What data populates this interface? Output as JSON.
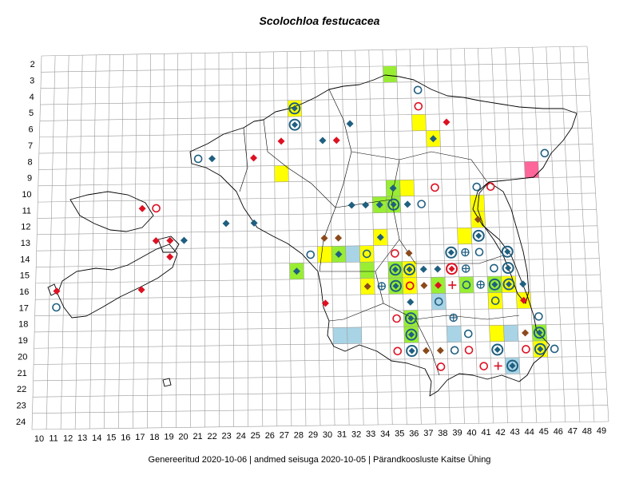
{
  "title": "Scolochloa festucacea",
  "footer": "Genereeritud 2020-10-06  |  andmed seisuga 2020-10-05  |  Pärandkoosluste Kaitse Ühing",
  "grid": {
    "row_labels": [
      "2",
      "3",
      "4",
      "5",
      "6",
      "7",
      "8",
      "9",
      "10",
      "11",
      "12",
      "13",
      "14",
      "15",
      "16",
      "17",
      "18",
      "19",
      "20",
      "21",
      "22",
      "23",
      "24"
    ],
    "col_labels": [
      "10",
      "11",
      "12",
      "13",
      "14",
      "15",
      "16",
      "17",
      "18",
      "19",
      "20",
      "21",
      "22",
      "23",
      "24",
      "25",
      "26",
      "27",
      "28",
      "29",
      "30",
      "31",
      "32",
      "33",
      "34",
      "35",
      "36",
      "37",
      "38",
      "39",
      "40",
      "41",
      "42",
      "43",
      "44",
      "45",
      "46",
      "47",
      "48",
      "49"
    ]
  },
  "colors": {
    "yellow": "#ffff00",
    "green": "#99ee33",
    "blue": "#a8d4e6",
    "pink": "#ff6699",
    "blue_symbol": "#1f5f80",
    "red_symbol": "#dd1122",
    "brown_symbol": "#8b4a1c"
  },
  "cells": [
    {
      "col": 35,
      "row": 3,
      "fill": "green"
    },
    {
      "col": 28,
      "row": 5,
      "fill": "yellow"
    },
    {
      "col": 37,
      "row": 6,
      "fill": "yellow"
    },
    {
      "col": 38,
      "row": 7,
      "fill": "yellow"
    },
    {
      "col": 27,
      "row": 9,
      "fill": "yellow"
    },
    {
      "col": 45,
      "row": 9,
      "fill": "pink"
    },
    {
      "col": 35,
      "row": 10,
      "fill": "green"
    },
    {
      "col": 36,
      "row": 10,
      "fill": "yellow"
    },
    {
      "col": 34,
      "row": 11,
      "fill": "green"
    },
    {
      "col": 35,
      "row": 11,
      "fill": "green"
    },
    {
      "col": 41,
      "row": 11,
      "fill": "yellow"
    },
    {
      "col": 41,
      "row": 12,
      "fill": "yellow"
    },
    {
      "col": 34,
      "row": 13,
      "fill": "yellow"
    },
    {
      "col": 40,
      "row": 13,
      "fill": "yellow"
    },
    {
      "col": 30,
      "row": 14,
      "fill": "yellow"
    },
    {
      "col": 31,
      "row": 14,
      "fill": "green"
    },
    {
      "col": 32,
      "row": 14,
      "fill": "blue"
    },
    {
      "col": 33,
      "row": 14,
      "fill": "yellow"
    },
    {
      "col": 28,
      "row": 15,
      "fill": "green"
    },
    {
      "col": 33,
      "row": 15,
      "fill": "green"
    },
    {
      "col": 35,
      "row": 15,
      "fill": "green"
    },
    {
      "col": 36,
      "row": 15,
      "fill": "yellow"
    },
    {
      "col": 33,
      "row": 16,
      "fill": "yellow"
    },
    {
      "col": 35,
      "row": 16,
      "fill": "green"
    },
    {
      "col": 36,
      "row": 16,
      "fill": "yellow"
    },
    {
      "col": 38,
      "row": 16,
      "fill": "green"
    },
    {
      "col": 40,
      "row": 16,
      "fill": "green"
    },
    {
      "col": 42,
      "row": 16,
      "fill": "green"
    },
    {
      "col": 43,
      "row": 16,
      "fill": "yellow"
    },
    {
      "col": 38,
      "row": 17,
      "fill": "blue"
    },
    {
      "col": 42,
      "row": 17,
      "fill": "yellow"
    },
    {
      "col": 44,
      "row": 17,
      "fill": "yellow"
    },
    {
      "col": 36,
      "row": 18,
      "fill": "green"
    },
    {
      "col": 31,
      "row": 19,
      "fill": "blue"
    },
    {
      "col": 32,
      "row": 19,
      "fill": "blue"
    },
    {
      "col": 36,
      "row": 19,
      "fill": "green"
    },
    {
      "col": 39,
      "row": 19,
      "fill": "blue"
    },
    {
      "col": 42,
      "row": 19,
      "fill": "yellow"
    },
    {
      "col": 43,
      "row": 19,
      "fill": "blue"
    },
    {
      "col": 45,
      "row": 19,
      "fill": "green"
    },
    {
      "col": 45,
      "row": 20,
      "fill": "yellow"
    },
    {
      "col": 43,
      "row": 21,
      "fill": "blue"
    }
  ],
  "symbols": [
    {
      "col": 28,
      "row": 5,
      "kind": "diamond-in-circle",
      "color": "blue"
    },
    {
      "col": 37,
      "row": 4,
      "kind": "circle",
      "color": "blue"
    },
    {
      "col": 37,
      "row": 5,
      "kind": "circle",
      "color": "red"
    },
    {
      "col": 39,
      "row": 6,
      "kind": "diamond",
      "color": "red"
    },
    {
      "col": 28,
      "row": 6,
      "kind": "diamond-in-circle",
      "color": "blue"
    },
    {
      "col": 32,
      "row": 6,
      "kind": "diamond",
      "color": "blue"
    },
    {
      "col": 27,
      "row": 7,
      "kind": "diamond",
      "color": "red"
    },
    {
      "col": 30,
      "row": 7,
      "kind": "diamond",
      "color": "blue"
    },
    {
      "col": 31,
      "row": 7,
      "kind": "diamond",
      "color": "red"
    },
    {
      "col": 38,
      "row": 7,
      "kind": "diamond",
      "color": "blue"
    },
    {
      "col": 21,
      "row": 8,
      "kind": "circle",
      "color": "blue"
    },
    {
      "col": 22,
      "row": 8,
      "kind": "diamond",
      "color": "blue"
    },
    {
      "col": 25,
      "row": 8,
      "kind": "diamond",
      "color": "red"
    },
    {
      "col": 46,
      "row": 8,
      "kind": "circle",
      "color": "blue"
    },
    {
      "col": 35,
      "row": 10,
      "kind": "diamond",
      "color": "blue"
    },
    {
      "col": 38,
      "row": 10,
      "kind": "circle",
      "color": "red"
    },
    {
      "col": 41,
      "row": 10,
      "kind": "circle",
      "color": "blue"
    },
    {
      "col": 42,
      "row": 10,
      "kind": "circle",
      "color": "red"
    },
    {
      "col": 17,
      "row": 11,
      "kind": "diamond",
      "color": "red"
    },
    {
      "col": 18,
      "row": 11,
      "kind": "circle",
      "color": "red"
    },
    {
      "col": 32,
      "row": 11,
      "kind": "diamond",
      "color": "blue"
    },
    {
      "col": 33,
      "row": 11,
      "kind": "diamond",
      "color": "blue"
    },
    {
      "col": 34,
      "row": 11,
      "kind": "diamond",
      "color": "blue"
    },
    {
      "col": 35,
      "row": 11,
      "kind": "diamond-in-circle",
      "color": "blue"
    },
    {
      "col": 36,
      "row": 11,
      "kind": "diamond",
      "color": "blue"
    },
    {
      "col": 37,
      "row": 11,
      "kind": "circle",
      "color": "blue"
    },
    {
      "col": 41,
      "row": 12,
      "kind": "diamond",
      "color": "brown"
    },
    {
      "col": 23,
      "row": 12,
      "kind": "diamond",
      "color": "blue"
    },
    {
      "col": 25,
      "row": 12,
      "kind": "diamond",
      "color": "blue"
    },
    {
      "col": 18,
      "row": 13,
      "kind": "diamond",
      "color": "red"
    },
    {
      "col": 19,
      "row": 13,
      "kind": "diamond",
      "color": "red"
    },
    {
      "col": 20,
      "row": 13,
      "kind": "diamond",
      "color": "blue"
    },
    {
      "col": 30,
      "row": 13,
      "kind": "diamond",
      "color": "brown"
    },
    {
      "col": 31,
      "row": 13,
      "kind": "diamond",
      "color": "brown"
    },
    {
      "col": 34,
      "row": 13,
      "kind": "diamond",
      "color": "blue"
    },
    {
      "col": 41,
      "row": 13,
      "kind": "diamond-in-circle",
      "color": "blue"
    },
    {
      "col": 19,
      "row": 14,
      "kind": "diamond",
      "color": "red"
    },
    {
      "col": 29,
      "row": 14,
      "kind": "circle",
      "color": "blue"
    },
    {
      "col": 31,
      "row": 14,
      "kind": "diamond",
      "color": "blue"
    },
    {
      "col": 33,
      "row": 14,
      "kind": "circle",
      "color": "blue"
    },
    {
      "col": 35,
      "row": 14,
      "kind": "circle",
      "color": "red"
    },
    {
      "col": 36,
      "row": 14,
      "kind": "diamond",
      "color": "brown"
    },
    {
      "col": 39,
      "row": 14,
      "kind": "diamond-in-circle",
      "color": "blue"
    },
    {
      "col": 40,
      "row": 14,
      "kind": "cross-circle",
      "color": "blue"
    },
    {
      "col": 41,
      "row": 14,
      "kind": "circle",
      "color": "blue"
    },
    {
      "col": 43,
      "row": 14,
      "kind": "diamond-in-circle",
      "color": "blue"
    },
    {
      "col": 28,
      "row": 15,
      "kind": "diamond",
      "color": "blue"
    },
    {
      "col": 35,
      "row": 15,
      "kind": "diamond-in-circle",
      "color": "blue"
    },
    {
      "col": 36,
      "row": 15,
      "kind": "diamond-in-circle",
      "color": "blue"
    },
    {
      "col": 37,
      "row": 15,
      "kind": "diamond",
      "color": "blue"
    },
    {
      "col": 38,
      "row": 15,
      "kind": "diamond",
      "color": "blue"
    },
    {
      "col": 39,
      "row": 15,
      "kind": "diamond-in-circle",
      "color": "red"
    },
    {
      "col": 40,
      "row": 15,
      "kind": "cross-circle",
      "color": "blue"
    },
    {
      "col": 42,
      "row": 15,
      "kind": "circle",
      "color": "blue"
    },
    {
      "col": 43,
      "row": 15,
      "kind": "diamond-in-circle",
      "color": "blue"
    },
    {
      "col": 11,
      "row": 16,
      "kind": "diamond",
      "color": "red"
    },
    {
      "col": 17,
      "row": 16,
      "kind": "diamond",
      "color": "red"
    },
    {
      "col": 33,
      "row": 16,
      "kind": "diamond",
      "color": "brown"
    },
    {
      "col": 35,
      "row": 16,
      "kind": "diamond-in-circle",
      "color": "blue"
    },
    {
      "col": 36,
      "row": 16,
      "kind": "circle",
      "color": "red"
    },
    {
      "col": 37,
      "row": 16,
      "kind": "diamond",
      "color": "brown"
    },
    {
      "col": 38,
      "row": 16,
      "kind": "diamond",
      "color": "red"
    },
    {
      "col": 39,
      "row": 16,
      "kind": "plus",
      "color": "red"
    },
    {
      "col": 40,
      "row": 16,
      "kind": "circle",
      "color": "blue"
    },
    {
      "col": 41,
      "row": 16,
      "kind": "cross-circle",
      "color": "blue"
    },
    {
      "col": 42,
      "row": 16,
      "kind": "diamond-in-circle",
      "color": "blue"
    },
    {
      "col": 43,
      "row": 16,
      "kind": "diamond-in-circle",
      "color": "blue"
    },
    {
      "col": 44,
      "row": 16,
      "kind": "diamond",
      "color": "blue"
    },
    {
      "col": 36,
      "row": 16,
      "kind": "circle",
      "color": "red"
    },
    {
      "col": 34,
      "row": 16,
      "kind": "cross-circle",
      "color": "blue"
    },
    {
      "col": 11,
      "row": 17,
      "kind": "circle",
      "color": "blue"
    },
    {
      "col": 30,
      "row": 17,
      "kind": "diamond",
      "color": "red"
    },
    {
      "col": 36,
      "row": 17,
      "kind": "diamond",
      "color": "blue"
    },
    {
      "col": 38,
      "row": 17,
      "kind": "circle",
      "color": "blue"
    },
    {
      "col": 42,
      "row": 17,
      "kind": "circle",
      "color": "blue"
    },
    {
      "col": 44,
      "row": 17,
      "kind": "diamond",
      "color": "red"
    },
    {
      "col": 35,
      "row": 18,
      "kind": "circle",
      "color": "red"
    },
    {
      "col": 36,
      "row": 18,
      "kind": "diamond-in-circle",
      "color": "blue"
    },
    {
      "col": 39,
      "row": 18,
      "kind": "cross-circle",
      "color": "blue"
    },
    {
      "col": 45,
      "row": 18,
      "kind": "circle",
      "color": "blue"
    },
    {
      "col": 36,
      "row": 19,
      "kind": "diamond-in-circle",
      "color": "blue"
    },
    {
      "col": 40,
      "row": 19,
      "kind": "circle",
      "color": "blue"
    },
    {
      "col": 44,
      "row": 19,
      "kind": "diamond",
      "color": "brown"
    },
    {
      "col": 45,
      "row": 19,
      "kind": "diamond-in-circle",
      "color": "blue"
    },
    {
      "col": 35,
      "row": 20,
      "kind": "circle",
      "color": "red"
    },
    {
      "col": 36,
      "row": 20,
      "kind": "diamond-in-circle",
      "color": "blue"
    },
    {
      "col": 37,
      "row": 20,
      "kind": "diamond",
      "color": "brown"
    },
    {
      "col": 38,
      "row": 20,
      "kind": "diamond",
      "color": "brown"
    },
    {
      "col": 39,
      "row": 20,
      "kind": "circle",
      "color": "blue"
    },
    {
      "col": 40,
      "row": 20,
      "kind": "circle",
      "color": "red"
    },
    {
      "col": 42,
      "row": 20,
      "kind": "diamond-in-circle",
      "color": "blue"
    },
    {
      "col": 44,
      "row": 20,
      "kind": "circle",
      "color": "red"
    },
    {
      "col": 45,
      "row": 20,
      "kind": "diamond-in-circle",
      "color": "blue"
    },
    {
      "col": 46,
      "row": 20,
      "kind": "circle",
      "color": "blue"
    },
    {
      "col": 38,
      "row": 21,
      "kind": "circle",
      "color": "red"
    },
    {
      "col": 41,
      "row": 21,
      "kind": "circle",
      "color": "red"
    },
    {
      "col": 42,
      "row": 21,
      "kind": "plus",
      "color": "red"
    },
    {
      "col": 43,
      "row": 21,
      "kind": "diamond-in-circle",
      "color": "blue"
    }
  ]
}
